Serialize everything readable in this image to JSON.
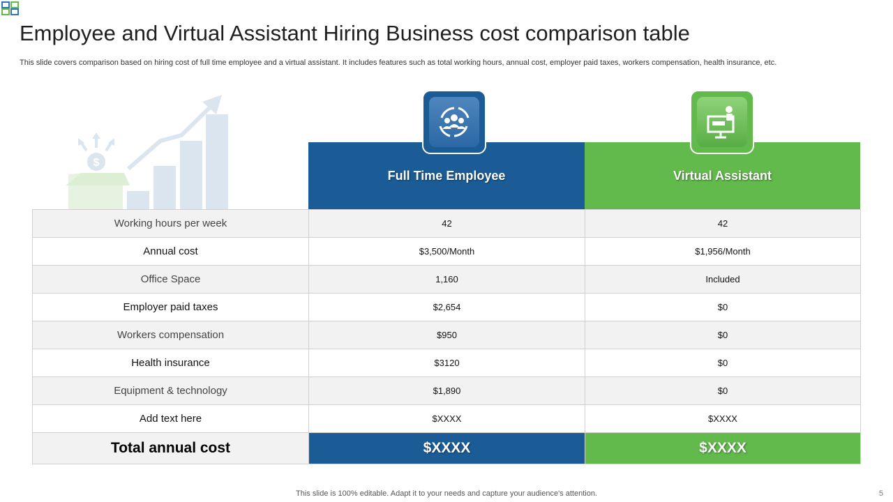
{
  "header": {
    "title": "Employee and Virtual Assistant Hiring Business cost comparison table",
    "subtitle": "This slide covers comparison based on hiring cost of full time employee and a virtual  assistant. It includes features such as total working hours, annual cost, employer paid taxes, workers compensation, health insurance, etc."
  },
  "columns": {
    "fte": {
      "label": "Full Time Employee",
      "icon": "team-cycle-icon",
      "color": "#1b5c96"
    },
    "va": {
      "label": "Virtual Assistant",
      "icon": "remote-presenter-icon",
      "color": "#62b94c"
    }
  },
  "rows": [
    {
      "label": "Working hours per week",
      "fte": "42",
      "va": "42"
    },
    {
      "label": "Annual cost",
      "fte": "$3,500/Month",
      "va": "$1,956/Month"
    },
    {
      "label": "Office Space",
      "fte": "1,160",
      "va": "Included"
    },
    {
      "label": "Employer paid taxes",
      "fte": "$2,654",
      "va": "$0"
    },
    {
      "label": "Workers compensation",
      "fte": "$950",
      "va": "$0"
    },
    {
      "label": "Health insurance",
      "fte": "$3120",
      "va": "$0"
    },
    {
      "label": "Equipment & technology",
      "fte": "$1,890",
      "va": "$0"
    },
    {
      "label": "Add text here",
      "fte": "$XXXX",
      "va": "$XXXX"
    }
  ],
  "total": {
    "label": "Total annual cost",
    "fte": "$XXXX",
    "va": "$XXXX"
  },
  "footer": {
    "note": "This slide is 100% editable. Adapt it to your needs and capture your audience's attention.",
    "page": "5"
  }
}
